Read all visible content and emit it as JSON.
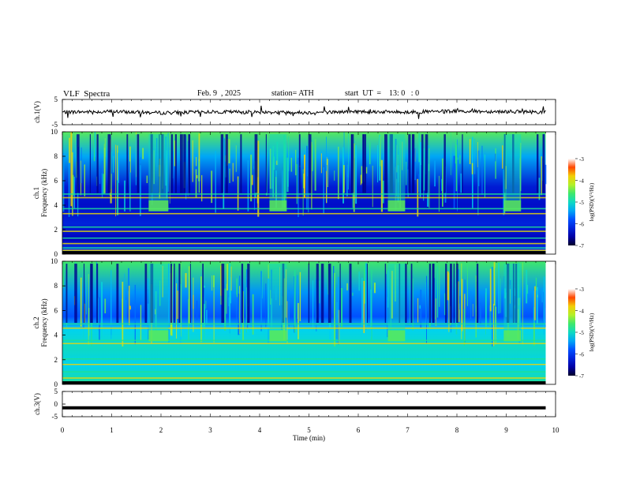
{
  "header": {
    "title": "VLF  Spectra",
    "date": "Feb. 9  , 2025",
    "station": "station= ATH",
    "start": "start  UT  =    13: 0   : 0"
  },
  "chart_data": [
    {
      "type": "line",
      "title": "",
      "xlabel": "",
      "ylabel": "ch.1(V)",
      "xlim": [
        0,
        10
      ],
      "ylim": [
        -5,
        5
      ],
      "yticks": [
        "5",
        "-5"
      ],
      "series": [
        {
          "x": [
            0,
            1,
            2,
            3,
            4,
            5,
            6,
            7,
            8,
            9,
            9.8
          ],
          "values": [
            0,
            0.2,
            -0.3,
            0.1,
            0,
            -0.2,
            0.2,
            0,
            0.3,
            0.2,
            0
          ]
        }
      ]
    },
    {
      "type": "heatmap",
      "ylabel": "Frequency  (kHz)",
      "channel": "ch.1",
      "xlim": [
        0,
        10
      ],
      "ylim": [
        0,
        10
      ],
      "yticks": [
        "0",
        "2",
        "4",
        "6",
        "8",
        "10"
      ],
      "data_end_min": 9.8,
      "colorbar": {
        "label": "log(PSD)(V²/Hz)",
        "ticks": [
          "-3",
          "-4",
          "-5",
          "-6",
          "-7"
        ]
      },
      "bands_khz": [
        0.3,
        0.5,
        0.85,
        1.3,
        1.85,
        2.2,
        3.3,
        3.7,
        4.6,
        4.9
      ],
      "bursts": [
        {
          "start_min": 1.75,
          "end_min": 2.15,
          "freq_khz": [
            3.5,
            4.4
          ]
        },
        {
          "start_min": 4.2,
          "end_min": 4.55,
          "freq_khz": [
            3.5,
            4.4
          ]
        },
        {
          "start_min": 6.6,
          "end_min": 6.95,
          "freq_khz": [
            3.5,
            4.4
          ]
        },
        {
          "start_min": 8.95,
          "end_min": 9.3,
          "freq_khz": [
            3.5,
            4.4
          ]
        }
      ]
    },
    {
      "type": "heatmap",
      "ylabel": "Frequency  (kHz)",
      "channel": "ch.2",
      "xlim": [
        0,
        10
      ],
      "ylim": [
        0,
        10
      ],
      "yticks": [
        "0",
        "2",
        "4",
        "6",
        "8",
        "10"
      ],
      "data_end_min": 9.8,
      "colorbar": {
        "label": "log(PSD)(V²/Hz)",
        "ticks": [
          "-3",
          "-4",
          "-5",
          "-6",
          "-7"
        ]
      },
      "bands_khz": [
        0.5,
        1.0,
        1.6,
        2.05,
        3.3,
        3.55,
        4.55,
        4.9
      ],
      "bursts": [
        {
          "start_min": 1.75,
          "end_min": 2.15,
          "freq_khz": [
            3.5,
            4.4
          ]
        },
        {
          "start_min": 4.2,
          "end_min": 4.55,
          "freq_khz": [
            3.5,
            4.4
          ]
        },
        {
          "start_min": 6.6,
          "end_min": 6.95,
          "freq_khz": [
            3.5,
            4.4
          ]
        },
        {
          "start_min": 8.95,
          "end_min": 9.3,
          "freq_khz": [
            3.5,
            4.4
          ]
        }
      ]
    },
    {
      "type": "line",
      "ylabel": "ch.3(V)",
      "xlabel": "Time  (min)",
      "xlim": [
        0,
        10
      ],
      "ylim": [
        -5,
        5
      ],
      "yticks": [
        "5",
        "0",
        "-5"
      ],
      "xticks": [
        "0",
        "1",
        "2",
        "3",
        "4",
        "5",
        "6",
        "7",
        "8",
        "9",
        "10"
      ],
      "series": [
        {
          "x": [
            0,
            9.8
          ],
          "values": [
            -1.5,
            -1.5
          ]
        }
      ]
    }
  ]
}
